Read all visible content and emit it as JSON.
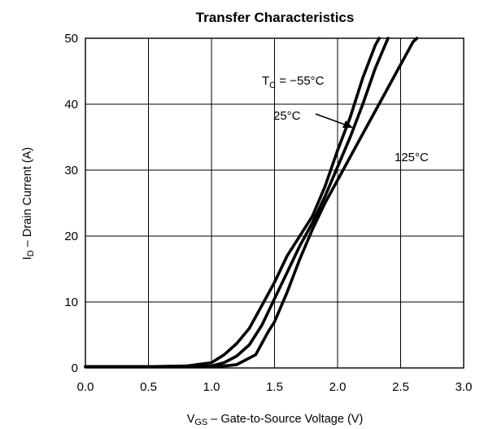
{
  "chart_data": {
    "type": "line",
    "title": "Transfer Characteristics",
    "xlabel": {
      "main": "V",
      "sub": "GS",
      "rest": " –  Gate-to-Source Voltage (V)"
    },
    "ylabel": {
      "main": "I",
      "sub": "D",
      "rest": " –  Drain Current (A)"
    },
    "xlim": [
      0,
      3.0
    ],
    "ylim": [
      0,
      50
    ],
    "xticks": [
      "0.0",
      "0.5",
      "1.0",
      "1.5",
      "2.0",
      "2.5",
      "3.0"
    ],
    "yticks": [
      "0",
      "10",
      "20",
      "30",
      "40",
      "50"
    ],
    "grid": true,
    "series": [
      {
        "name": "T_C = −55°C",
        "values": [
          [
            0,
            0.2
          ],
          [
            0.5,
            0.2
          ],
          [
            0.8,
            0.3
          ],
          [
            1.0,
            0.8
          ],
          [
            1.1,
            2.0
          ],
          [
            1.2,
            3.7
          ],
          [
            1.3,
            6.0
          ],
          [
            1.4,
            9.5
          ],
          [
            1.5,
            13.0
          ],
          [
            1.6,
            17.0
          ],
          [
            1.8,
            23.0
          ],
          [
            1.9,
            27.5
          ],
          [
            2.0,
            33.0
          ],
          [
            2.1,
            38.0
          ],
          [
            2.2,
            44.0
          ],
          [
            2.3,
            49.0
          ],
          [
            2.33,
            50.0
          ]
        ]
      },
      {
        "name": "25°C",
        "values": [
          [
            0,
            0.2
          ],
          [
            0.9,
            0.2
          ],
          [
            1.0,
            0.3
          ],
          [
            1.1,
            0.8
          ],
          [
            1.2,
            1.8
          ],
          [
            1.3,
            3.5
          ],
          [
            1.4,
            6.5
          ],
          [
            1.5,
            10.5
          ],
          [
            1.6,
            14.5
          ],
          [
            1.7,
            18.5
          ],
          [
            1.8,
            22.0
          ],
          [
            1.9,
            26.0
          ],
          [
            2.0,
            30.5
          ],
          [
            2.1,
            35.0
          ],
          [
            2.2,
            40.0
          ],
          [
            2.3,
            45.5
          ],
          [
            2.4,
            50.0
          ]
        ]
      },
      {
        "name": "125°C",
        "values": [
          [
            0,
            0.2
          ],
          [
            1.05,
            0.2
          ],
          [
            1.2,
            0.5
          ],
          [
            1.35,
            2.0
          ],
          [
            1.45,
            5.5
          ],
          [
            1.5,
            7.0
          ],
          [
            1.6,
            11.5
          ],
          [
            1.7,
            16.5
          ],
          [
            1.8,
            21.0
          ],
          [
            1.9,
            25.0
          ],
          [
            2.0,
            28.5
          ],
          [
            2.1,
            32.0
          ],
          [
            2.2,
            35.5
          ],
          [
            2.3,
            39.0
          ],
          [
            2.4,
            42.5
          ],
          [
            2.5,
            46.0
          ],
          [
            2.6,
            49.5
          ],
          [
            2.63,
            50.0
          ]
        ]
      }
    ],
    "annotations": {
      "tc_prefix": "T",
      "tc_sub": "C",
      "tc_rest": " = −55°C",
      "t25": "25°C",
      "t125": "125°C"
    }
  }
}
